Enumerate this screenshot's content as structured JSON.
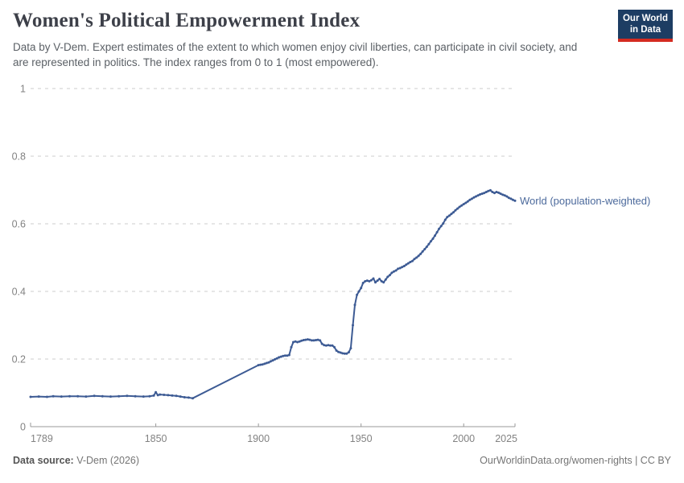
{
  "header": {
    "title": "Women's Political Empowerment Index",
    "subtitle": "Data by V-Dem. Expert estimates of the extent to which women enjoy civil liberties, can participate in civil society, and are represented in politics. The index ranges from 0 to 1 (most empowered).",
    "logo": {
      "line1": "Our World",
      "line2": "in Data"
    }
  },
  "footer": {
    "source_label": "Data source:",
    "source_value": "V-Dem (2026)",
    "rights": "OurWorldinData.org/women-rights | CC BY"
  },
  "colors": {
    "line": "#3d5b94",
    "series_label": "#4c6a9c",
    "logo_navy": "#1d3d63",
    "logo_red": "#d42b21",
    "grid": "#dedede",
    "axis": "#999999",
    "tick_label": "#828282"
  },
  "chart_data": {
    "type": "line",
    "title": "Women's Political Empowerment Index",
    "xlabel": "",
    "ylabel": "",
    "xlim": [
      1789,
      2025
    ],
    "ylim": [
      0,
      1
    ],
    "xticks": [
      1789,
      1850,
      1900,
      1950,
      2000,
      2025
    ],
    "yticks": [
      0,
      0.2,
      0.4,
      0.6,
      0.8,
      1
    ],
    "grid": "horizontal-dashed",
    "legend_position": "end-of-line",
    "note": "Straight segment 1868-1900 is linear interpolation between sparse points",
    "series": [
      {
        "name": "World (population-weighted)",
        "color": "#3d5b94",
        "points": [
          [
            1789,
            0.088
          ],
          [
            1793,
            0.089
          ],
          [
            1797,
            0.088
          ],
          [
            1800,
            0.09
          ],
          [
            1804,
            0.089
          ],
          [
            1808,
            0.09
          ],
          [
            1812,
            0.09
          ],
          [
            1816,
            0.089
          ],
          [
            1820,
            0.091
          ],
          [
            1824,
            0.09
          ],
          [
            1828,
            0.089
          ],
          [
            1832,
            0.09
          ],
          [
            1836,
            0.091
          ],
          [
            1840,
            0.09
          ],
          [
            1844,
            0.089
          ],
          [
            1847,
            0.09
          ],
          [
            1849,
            0.092
          ],
          [
            1850,
            0.102
          ],
          [
            1851,
            0.093
          ],
          [
            1852,
            0.095
          ],
          [
            1854,
            0.094
          ],
          [
            1856,
            0.093
          ],
          [
            1858,
            0.092
          ],
          [
            1860,
            0.091
          ],
          [
            1862,
            0.089
          ],
          [
            1864,
            0.087
          ],
          [
            1866,
            0.086
          ],
          [
            1868,
            0.084
          ],
          [
            1900,
            0.182
          ],
          [
            1901,
            0.183
          ],
          [
            1902,
            0.184
          ],
          [
            1903,
            0.186
          ],
          [
            1904,
            0.188
          ],
          [
            1905,
            0.19
          ],
          [
            1906,
            0.193
          ],
          [
            1907,
            0.196
          ],
          [
            1908,
            0.199
          ],
          [
            1909,
            0.202
          ],
          [
            1910,
            0.205
          ],
          [
            1911,
            0.207
          ],
          [
            1912,
            0.209
          ],
          [
            1913,
            0.21
          ],
          [
            1914,
            0.21
          ],
          [
            1915,
            0.212
          ],
          [
            1916,
            0.235
          ],
          [
            1917,
            0.25
          ],
          [
            1918,
            0.252
          ],
          [
            1919,
            0.25
          ],
          [
            1920,
            0.252
          ],
          [
            1921,
            0.254
          ],
          [
            1922,
            0.256
          ],
          [
            1923,
            0.257
          ],
          [
            1924,
            0.258
          ],
          [
            1925,
            0.257
          ],
          [
            1926,
            0.255
          ],
          [
            1927,
            0.255
          ],
          [
            1928,
            0.256
          ],
          [
            1929,
            0.257
          ],
          [
            1930,
            0.255
          ],
          [
            1931,
            0.245
          ],
          [
            1932,
            0.241
          ],
          [
            1933,
            0.24
          ],
          [
            1934,
            0.241
          ],
          [
            1935,
            0.24
          ],
          [
            1936,
            0.24
          ],
          [
            1937,
            0.235
          ],
          [
            1938,
            0.225
          ],
          [
            1939,
            0.221
          ],
          [
            1940,
            0.219
          ],
          [
            1941,
            0.217
          ],
          [
            1942,
            0.216
          ],
          [
            1943,
            0.216
          ],
          [
            1944,
            0.22
          ],
          [
            1945,
            0.232
          ],
          [
            1946,
            0.3
          ],
          [
            1947,
            0.36
          ],
          [
            1948,
            0.39
          ],
          [
            1949,
            0.4
          ],
          [
            1950,
            0.41
          ],
          [
            1951,
            0.425
          ],
          [
            1952,
            0.43
          ],
          [
            1953,
            0.432
          ],
          [
            1954,
            0.43
          ],
          [
            1955,
            0.433
          ],
          [
            1956,
            0.438
          ],
          [
            1957,
            0.427
          ],
          [
            1958,
            0.432
          ],
          [
            1959,
            0.437
          ],
          [
            1960,
            0.43
          ],
          [
            1961,
            0.427
          ],
          [
            1962,
            0.435
          ],
          [
            1963,
            0.443
          ],
          [
            1964,
            0.448
          ],
          [
            1965,
            0.455
          ],
          [
            1966,
            0.459
          ],
          [
            1967,
            0.462
          ],
          [
            1968,
            0.467
          ],
          [
            1969,
            0.469
          ],
          [
            1970,
            0.472
          ],
          [
            1971,
            0.475
          ],
          [
            1972,
            0.479
          ],
          [
            1973,
            0.483
          ],
          [
            1974,
            0.487
          ],
          [
            1975,
            0.49
          ],
          [
            1976,
            0.496
          ],
          [
            1977,
            0.5
          ],
          [
            1978,
            0.505
          ],
          [
            1979,
            0.511
          ],
          [
            1980,
            0.518
          ],
          [
            1981,
            0.525
          ],
          [
            1982,
            0.532
          ],
          [
            1983,
            0.54
          ],
          [
            1984,
            0.548
          ],
          [
            1985,
            0.556
          ],
          [
            1986,
            0.565
          ],
          [
            1987,
            0.575
          ],
          [
            1988,
            0.585
          ],
          [
            1989,
            0.593
          ],
          [
            1990,
            0.601
          ],
          [
            1991,
            0.612
          ],
          [
            1992,
            0.62
          ],
          [
            1993,
            0.624
          ],
          [
            1994,
            0.629
          ],
          [
            1995,
            0.634
          ],
          [
            1996,
            0.64
          ],
          [
            1997,
            0.645
          ],
          [
            1998,
            0.65
          ],
          [
            1999,
            0.654
          ],
          [
            2000,
            0.658
          ],
          [
            2001,
            0.662
          ],
          [
            2002,
            0.666
          ],
          [
            2003,
            0.671
          ],
          [
            2004,
            0.674
          ],
          [
            2005,
            0.678
          ],
          [
            2006,
            0.681
          ],
          [
            2007,
            0.684
          ],
          [
            2008,
            0.687
          ],
          [
            2009,
            0.689
          ],
          [
            2010,
            0.691
          ],
          [
            2011,
            0.694
          ],
          [
            2012,
            0.697
          ],
          [
            2013,
            0.699
          ],
          [
            2014,
            0.694
          ],
          [
            2015,
            0.691
          ],
          [
            2016,
            0.694
          ],
          [
            2017,
            0.692
          ],
          [
            2018,
            0.689
          ],
          [
            2019,
            0.686
          ],
          [
            2020,
            0.684
          ],
          [
            2021,
            0.681
          ],
          [
            2022,
            0.677
          ],
          [
            2023,
            0.674
          ],
          [
            2024,
            0.671
          ],
          [
            2025,
            0.668
          ]
        ]
      }
    ]
  }
}
